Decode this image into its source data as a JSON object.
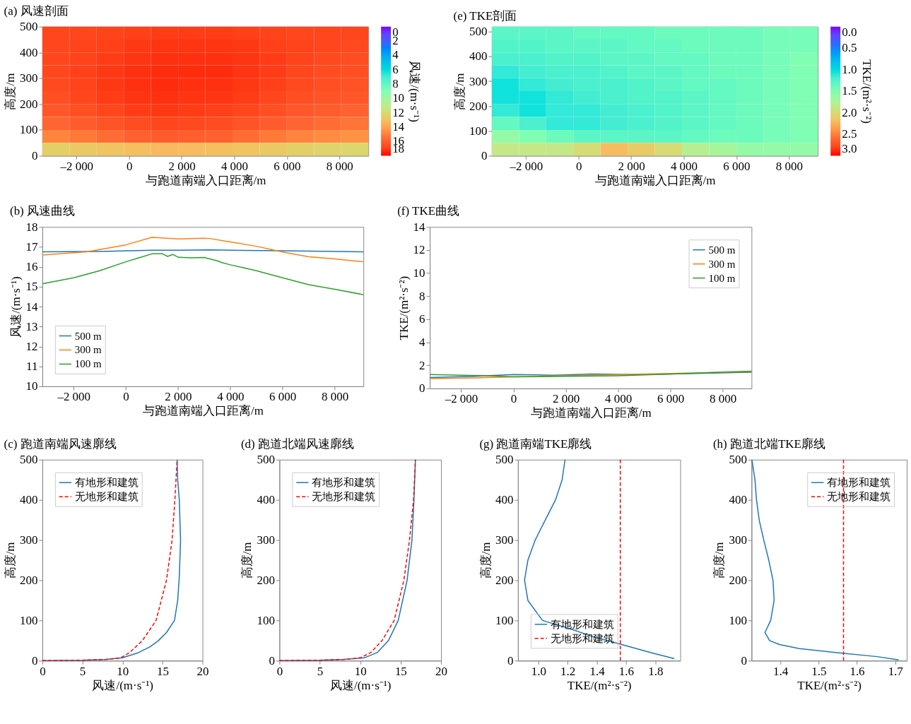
{
  "chart_data": [
    {
      "type": "heatmap",
      "title": "(a) 风速剖面",
      "xlabel": "与跑道南端入口距离/m",
      "ylabel": "高度/m",
      "clabel": "风速/(m·s⁻¹)",
      "xlim": [
        -3300,
        9100
      ],
      "ylim": [
        0,
        500
      ],
      "xticks": [
        {
          "value": -2000,
          "label": "–2 000"
        },
        0,
        {
          "value": 2000,
          "label": "2 000"
        },
        {
          "value": 4000,
          "label": "4 000"
        },
        {
          "value": 6000,
          "label": "6 000"
        },
        {
          "value": 8000,
          "label": "8 000"
        }
      ],
      "yticks": [
        0,
        100,
        200,
        300,
        400,
        500
      ],
      "clim": [
        0,
        18
      ],
      "cticks": [
        0,
        2,
        4,
        6,
        8,
        10,
        12,
        14,
        16,
        18
      ],
      "colors": [
        "#8000ff",
        "#4062fa",
        "#00b5eb",
        "#40ecd4",
        "#80ffb4",
        "#c0eb8d",
        "#ffb360",
        "#ff6232",
        "#ff0000"
      ],
      "x": [
        -2783,
        -1750,
        -717,
        317,
        1350,
        2383,
        3417,
        4450,
        5483,
        6517,
        7550,
        8583
      ],
      "y": [
        475,
        425,
        375,
        325,
        275,
        225,
        175,
        125,
        75,
        25
      ],
      "cells": [
        [
          16.8,
          16.8,
          16.9,
          17.0,
          17.1,
          17.1,
          17.1,
          17.0,
          16.9,
          16.8,
          16.8,
          16.8
        ],
        [
          16.8,
          16.9,
          17.0,
          17.2,
          17.3,
          17.3,
          17.3,
          17.2,
          17.0,
          16.9,
          16.8,
          16.7
        ],
        [
          16.8,
          16.9,
          17.1,
          17.3,
          17.4,
          17.4,
          17.4,
          17.3,
          17.1,
          16.9,
          16.7,
          16.6
        ],
        [
          16.8,
          17.0,
          17.2,
          17.4,
          17.5,
          17.5,
          17.5,
          17.3,
          17.1,
          16.8,
          16.6,
          16.5
        ],
        [
          16.7,
          16.9,
          17.2,
          17.4,
          17.5,
          17.4,
          17.4,
          17.2,
          17.0,
          16.7,
          16.5,
          16.4
        ],
        [
          16.5,
          16.8,
          17.1,
          17.3,
          17.4,
          17.3,
          17.3,
          17.1,
          16.8,
          16.5,
          16.3,
          16.2
        ],
        [
          16.2,
          16.5,
          16.8,
          17.1,
          17.2,
          17.1,
          17.0,
          16.8,
          16.5,
          16.2,
          16.0,
          15.8
        ],
        [
          15.7,
          16.0,
          16.3,
          16.6,
          16.8,
          16.7,
          16.6,
          16.3,
          16.0,
          15.7,
          15.5,
          15.3
        ],
        [
          14.9,
          15.2,
          15.5,
          15.8,
          16.0,
          15.9,
          15.8,
          15.5,
          15.2,
          14.9,
          14.7,
          14.5
        ],
        [
          12.5,
          12.7,
          12.9,
          13.1,
          13.3,
          13.2,
          13.1,
          12.9,
          12.7,
          12.5,
          12.3,
          12.2
        ]
      ],
      "grid": false
    },
    {
      "type": "heatmap",
      "title": "(e) TKE剖面",
      "xlabel": "与跑道南端入口距离/m",
      "ylabel": "高度/m",
      "clabel": "TKE/(m²·s⁻²)",
      "xlim": [
        -3300,
        9100
      ],
      "ylim": [
        0,
        520
      ],
      "xticks": [
        {
          "value": -2000,
          "label": "–2 000"
        },
        0,
        {
          "value": 2000,
          "label": "2 000"
        },
        {
          "value": 4000,
          "label": "4 000"
        },
        {
          "value": 6000,
          "label": "6 000"
        },
        {
          "value": 8000,
          "label": "8 000"
        }
      ],
      "yticks": [
        0,
        100,
        200,
        300,
        400,
        500
      ],
      "clim": [
        0,
        3
      ],
      "cticks": [
        {
          "value": 0,
          "label": "0.0"
        },
        0.5,
        {
          "value": 1,
          "label": "1.0"
        },
        1.5,
        {
          "value": 2,
          "label": "2.0"
        },
        2.5,
        {
          "value": 3,
          "label": "3.0"
        }
      ],
      "colors": [
        "#8000ff",
        "#4062fa",
        "#00b5eb",
        "#40ecd4",
        "#80ffb4",
        "#c0eb8d",
        "#ffb360",
        "#ff6232",
        "#ff0000"
      ],
      "x": [
        -2783,
        -1750,
        -717,
        317,
        1350,
        2383,
        3417,
        4450,
        5483,
        6517,
        7550,
        8583
      ],
      "y": [
        494,
        442,
        390,
        338,
        286,
        234,
        182,
        130,
        78,
        26
      ],
      "cells": [
        [
          1.3,
          1.3,
          1.3,
          1.35,
          1.35,
          1.35,
          1.4,
          1.4,
          1.4,
          1.4,
          1.45,
          1.45
        ],
        [
          1.25,
          1.25,
          1.3,
          1.3,
          1.3,
          1.35,
          1.35,
          1.4,
          1.4,
          1.4,
          1.45,
          1.45
        ],
        [
          1.2,
          1.2,
          1.25,
          1.25,
          1.3,
          1.3,
          1.35,
          1.35,
          1.4,
          1.4,
          1.45,
          1.5
        ],
        [
          1.1,
          1.15,
          1.2,
          1.2,
          1.25,
          1.3,
          1.3,
          1.35,
          1.4,
          1.4,
          1.45,
          1.5
        ],
        [
          1.05,
          1.1,
          1.15,
          1.2,
          1.2,
          1.25,
          1.3,
          1.35,
          1.35,
          1.4,
          1.45,
          1.5
        ],
        [
          1.05,
          1.05,
          1.1,
          1.15,
          1.2,
          1.25,
          1.25,
          1.3,
          1.35,
          1.4,
          1.45,
          1.5
        ],
        [
          1.1,
          1.05,
          1.1,
          1.1,
          1.15,
          1.2,
          1.25,
          1.3,
          1.35,
          1.4,
          1.45,
          1.5
        ],
        [
          1.35,
          1.2,
          1.1,
          1.1,
          1.15,
          1.2,
          1.25,
          1.3,
          1.35,
          1.4,
          1.45,
          1.5
        ],
        [
          1.6,
          1.5,
          1.4,
          1.3,
          1.3,
          1.3,
          1.3,
          1.35,
          1.4,
          1.4,
          1.45,
          1.5
        ],
        [
          1.9,
          1.9,
          1.9,
          2.0,
          2.2,
          2.1,
          2.0,
          1.8,
          1.7,
          1.6,
          1.6,
          1.6
        ]
      ],
      "grid": false
    },
    {
      "type": "line",
      "title": "(b) 风速曲线",
      "xlabel": "与跑道南端入口距离/m",
      "ylabel": "风速/(m·s⁻¹)",
      "xlim": [
        -3200,
        9100
      ],
      "ylim": [
        10,
        18
      ],
      "xticks": [
        {
          "value": -2000,
          "label": "–2 000"
        },
        0,
        {
          "value": 2000,
          "label": "2 000"
        },
        {
          "value": 4000,
          "label": "4 000"
        },
        {
          "value": 6000,
          "label": "6 000"
        },
        {
          "value": 8000,
          "label": "8 000"
        }
      ],
      "yticks": [
        10,
        11,
        12,
        13,
        14,
        15,
        16,
        17,
        18
      ],
      "legend": "bottom left",
      "grid": false,
      "series": [
        {
          "name": "500 m",
          "color": "#1f77b4",
          "x": [
            -3200,
            -1000,
            1000,
            2000,
            3200,
            4500,
            6000,
            9100
          ],
          "values": [
            16.75,
            16.77,
            16.83,
            16.83,
            16.85,
            16.82,
            16.8,
            16.75
          ]
        },
        {
          "name": "300 m",
          "color": "#ff7f0e",
          "x": [
            -3200,
            -1500,
            0,
            1000,
            2000,
            3000,
            3200,
            4000,
            5000,
            6000,
            7000,
            8000,
            9100
          ],
          "values": [
            16.59,
            16.75,
            17.1,
            17.48,
            17.4,
            17.43,
            17.42,
            17.25,
            17.03,
            16.74,
            16.5,
            16.4,
            16.25
          ]
        },
        {
          "name": "100 m",
          "color": "#2ca02c",
          "x": [
            -3200,
            -2000,
            -1000,
            0,
            500,
            1000,
            1400,
            1600,
            1800,
            2000,
            2500,
            3000,
            3500,
            3700,
            4000,
            4500,
            5000,
            6000,
            7000,
            8000,
            9100
          ],
          "values": [
            15.15,
            15.45,
            15.8,
            16.25,
            16.45,
            16.65,
            16.65,
            16.52,
            16.62,
            16.48,
            16.45,
            16.47,
            16.3,
            16.2,
            16.1,
            15.95,
            15.8,
            15.45,
            15.1,
            14.87,
            14.6
          ]
        }
      ]
    },
    {
      "type": "line",
      "title": "(f) TKE曲线",
      "xlabel": "与跑道南端入口距离/m",
      "ylabel": "TKE/(m²·s⁻²)",
      "xlim": [
        -3200,
        9100
      ],
      "ylim": [
        0,
        14
      ],
      "xticks": [
        {
          "value": -2000,
          "label": "–2 000"
        },
        0,
        {
          "value": 2000,
          "label": "2 000"
        },
        {
          "value": 4000,
          "label": "4 000"
        },
        {
          "value": 6000,
          "label": "6 000"
        },
        {
          "value": 8000,
          "label": "8 000"
        }
      ],
      "yticks": [
        0,
        2,
        4,
        6,
        8,
        10,
        12,
        14
      ],
      "legend": "top right",
      "grid": false,
      "series": [
        {
          "name": "500 m",
          "color": "#1f77b4",
          "x": [
            -3200,
            -1500,
            0,
            1500,
            3000,
            4500,
            6000,
            9100
          ],
          "values": [
            0.95,
            1.05,
            1.2,
            1.15,
            1.25,
            1.2,
            1.25,
            1.4
          ]
        },
        {
          "name": "300 m",
          "color": "#ff7f0e",
          "x": [
            -3200,
            -1500,
            0,
            9100
          ],
          "values": [
            0.85,
            0.92,
            1.0,
            1.45
          ]
        },
        {
          "name": "100 m",
          "color": "#2ca02c",
          "x": [
            -3200,
            -1000,
            0,
            2000,
            4000,
            6000,
            9100
          ],
          "values": [
            1.2,
            1.1,
            1.0,
            1.05,
            1.1,
            1.25,
            1.5
          ]
        }
      ]
    },
    {
      "type": "line",
      "title": "(c) 跑道南端风速廓线",
      "xlabel": "风速/(m·s⁻¹)",
      "ylabel": "高度/m",
      "xlim": [
        0,
        20
      ],
      "ylim": [
        0,
        500
      ],
      "xticks": [
        0,
        5,
        10,
        15,
        20
      ],
      "yticks": [
        0,
        100,
        200,
        300,
        400,
        500
      ],
      "legend": "top left",
      "grid": false,
      "series": [
        {
          "name": "有地形和建筑",
          "color": "#1f77b4",
          "line_style": "solid",
          "x": [
            0,
            5,
            8,
            10,
            12,
            13.5,
            14.5,
            15.5,
            16.5,
            16.9,
            17.1,
            17.26,
            17.1,
            16.9,
            16.83
          ],
          "values": [
            0,
            1,
            3,
            7,
            20,
            35,
            50,
            70,
            100,
            150,
            209,
            300,
            400,
            450,
            500
          ]
        },
        {
          "name": "无地形和建筑",
          "color": "#ff0000",
          "line_style": "dashed",
          "x": [
            0,
            5,
            8,
            9.8,
            10.9,
            12.5,
            14.2,
            15.5,
            16.2,
            16.55,
            16.83
          ],
          "values": [
            0,
            1,
            3,
            7,
            20,
            50,
            100,
            200,
            300,
            400,
            500
          ]
        }
      ]
    },
    {
      "type": "line",
      "title": "(d) 跑道北端风速廓线",
      "xlabel": "风速/(m·s⁻¹)",
      "ylabel": "高度/m",
      "xlim": [
        0,
        20
      ],
      "ylim": [
        0,
        500
      ],
      "xticks": [
        0,
        5,
        10,
        15,
        20
      ],
      "yticks": [
        0,
        100,
        200,
        300,
        400,
        500
      ],
      "legend": "top left",
      "grid": false,
      "series": [
        {
          "name": "有地形和建筑",
          "color": "#1f77b4",
          "line_style": "solid",
          "x": [
            0,
            5,
            8,
            10.5,
            12.1,
            13.5,
            14.7,
            15.8,
            16.4,
            16.65,
            16.83
          ],
          "values": [
            0,
            1,
            3,
            7,
            20,
            50,
            100,
            200,
            300,
            400,
            500
          ]
        },
        {
          "name": "无地形和建筑",
          "color": "#ff0000",
          "line_style": "dashed",
          "x": [
            0,
            5,
            8,
            10,
            11.3,
            12.7,
            14.2,
            15.4,
            16.1,
            16.6,
            16.83
          ],
          "values": [
            0,
            1,
            3,
            7,
            20,
            50,
            100,
            200,
            300,
            400,
            500
          ]
        }
      ]
    },
    {
      "type": "line",
      "title": "(g) 跑道南端TKE廓线",
      "xlabel": "TKE/(m²·s⁻²)",
      "ylabel": "高度/m",
      "xlim": [
        0.86,
        1.97
      ],
      "ylim": [
        0,
        500
      ],
      "xticks": [
        {
          "value": 1,
          "label": "1.0"
        },
        1.2,
        1.4,
        1.6,
        1.8
      ],
      "yticks": [
        0,
        100,
        200,
        300,
        400,
        500
      ],
      "legend": "bottom left",
      "grid": false,
      "series": [
        {
          "name": "有地形和建筑",
          "color": "#1f77b4",
          "line_style": "solid",
          "x": [
            1.93,
            1.77,
            1.57,
            1.37,
            1.21,
            1.028,
            0.928,
            0.905,
            0.928,
            0.978,
            1.047,
            1.117,
            1.162,
            1.182
          ],
          "values": [
            5,
            20,
            40,
            60,
            80,
            100,
            150,
            200,
            250,
            300,
            350,
            400,
            450,
            500
          ]
        },
        {
          "name": "无地形和建筑",
          "color": "#ff0000",
          "line_style": "dashed",
          "x": [
            1.56,
            1.56
          ],
          "values": [
            0,
            500
          ]
        }
      ]
    },
    {
      "type": "line",
      "title": "(h) 跑道北端TKE廓线",
      "xlabel": "TKE/(m²·s⁻²)",
      "ylabel": "高度/m",
      "xlim": [
        1.325,
        1.73
      ],
      "ylim": [
        0,
        500
      ],
      "xticks": [
        1.4,
        1.5,
        1.6,
        1.7
      ],
      "yticks": [
        0,
        100,
        200,
        300,
        400,
        500
      ],
      "legend": "top right",
      "grid": false,
      "series": [
        {
          "name": "有地形和建筑",
          "color": "#1f77b4",
          "line_style": "solid",
          "x": [
            1.709,
            1.653,
            1.548,
            1.45,
            1.398,
            1.372,
            1.36,
            1.375,
            1.384,
            1.381,
            1.37,
            1.357,
            1.345,
            1.338,
            1.334,
            1.326
          ],
          "values": [
            2,
            10,
            20,
            30,
            40,
            50,
            70,
            100,
            150,
            200,
            250,
            300,
            350,
            400,
            450,
            500
          ]
        },
        {
          "name": "无地形和建筑",
          "color": "#ff0000",
          "line_style": "dashed",
          "x": [
            1.565,
            1.565
          ],
          "values": [
            0,
            500
          ]
        }
      ]
    }
  ]
}
